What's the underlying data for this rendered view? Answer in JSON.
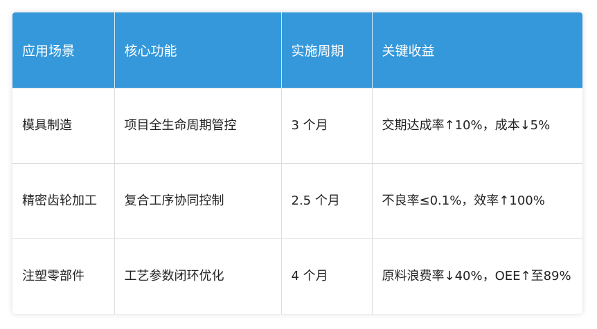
{
  "table": {
    "headers": [
      "应用场景",
      "核心功能",
      "实施周期",
      "关键收益"
    ],
    "rows": [
      [
        "模具制造",
        "项目全生命周期管控",
        "3 个月",
        "交期达成率↑10%，成本↓5%"
      ],
      [
        "精密齿轮加工",
        "复合工序协同控制",
        "2.5 个月",
        "不良率≤0.1%，效率↑100%"
      ],
      [
        "注塑零部件",
        "工艺参数闭环优化",
        "4 个月",
        "原料浪费率↓40%，OEE↑至89%"
      ]
    ]
  },
  "colors": {
    "header_bg": "#3498db",
    "header_text": "#ffffff"
  }
}
